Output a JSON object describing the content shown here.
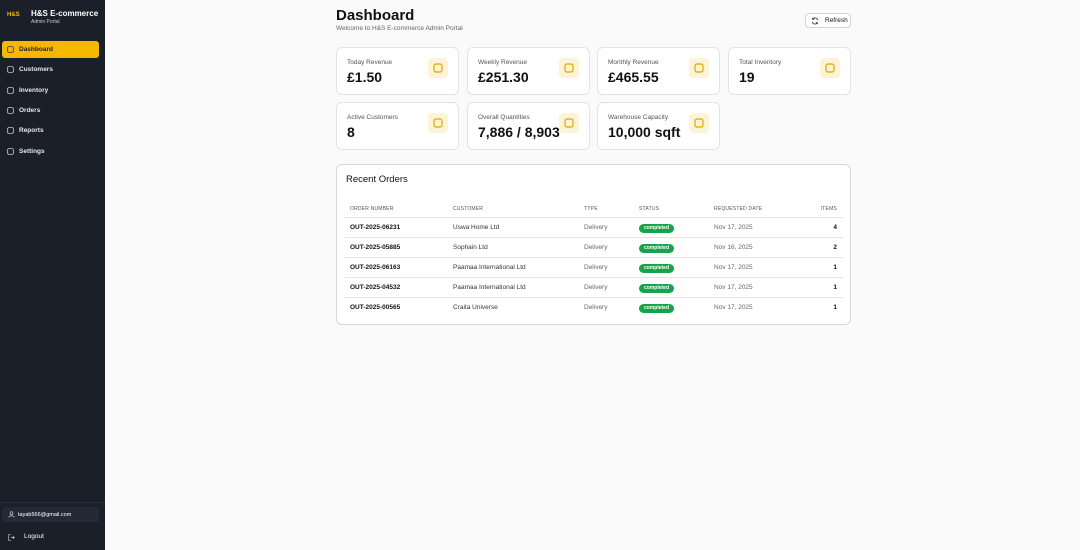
{
  "sidebar": {
    "logo": "H&S",
    "title": "H&S E-commerce",
    "subtitle": "Admin Portal",
    "nav": [
      "Dashboard",
      "Customers",
      "Inventory",
      "Orders",
      "Reports",
      "Settings"
    ],
    "user": "tayab566@gmail.com",
    "logout": "Logout"
  },
  "header": {
    "title": "Dashboard",
    "subtitle": "Welcome to H&S E-commerce Admin Portal",
    "refresh": "Refresh"
  },
  "cards": [
    {
      "label": "Today Revenue",
      "value": "£1.50"
    },
    {
      "label": "Weekly Revenue",
      "value": "£251.30"
    },
    {
      "label": "Monthly Revenue",
      "value": "£465.55"
    },
    {
      "label": "Total Inventory",
      "value": "19"
    },
    {
      "label": "Active Customers",
      "value": "8"
    },
    {
      "label": "Overall Quantities",
      "value": "7,886 / 8,903"
    },
    {
      "label": "Warehouse Capacity",
      "value": "10,000 sqft"
    }
  ],
  "recent_orders": {
    "title": "Recent Orders",
    "columns": [
      "ORDER NUMBER",
      "CUSTOMER",
      "TYPE",
      "STATUS",
      "REQUESTED DATE",
      "ITEMS"
    ],
    "rows": [
      [
        "OUT-2025-06231",
        "Uswa Home Ltd",
        "Delivery",
        "completed",
        "Nov 17, 2025",
        "4"
      ],
      [
        "OUT-2025-05885",
        "Sophain Ltd",
        "Delivery",
        "completed",
        "Nov 16, 2025",
        "2"
      ],
      [
        "OUT-2025-06163",
        "Paamaa International Ltd",
        "Delivery",
        "completed",
        "Nov 17, 2025",
        "1"
      ],
      [
        "OUT-2025-04532",
        "Paamaa International Ltd",
        "Delivery",
        "completed",
        "Nov 17, 2025",
        "1"
      ],
      [
        "OUT-2025-00565",
        "Craita Universe",
        "Delivery",
        "completed",
        "Nov 17, 2025",
        "1"
      ]
    ]
  }
}
